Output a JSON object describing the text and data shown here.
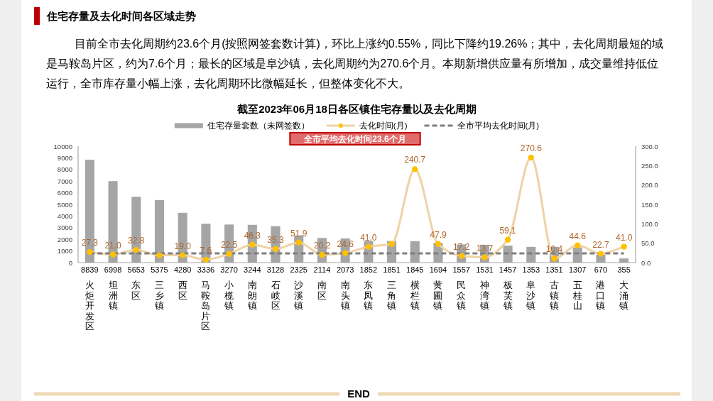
{
  "chart_data": {
    "type": "bar",
    "title": "截至2023年06月18日各区镇住宅存量以及去化周期",
    "categories": [
      "火炬开发区",
      "坦洲镇",
      "东区",
      "三乡镇",
      "西区",
      "马鞍岛片区",
      "小榄镇",
      "南朗镇",
      "石岐区",
      "沙溪镇",
      "南区",
      "南头镇",
      "东凤镇",
      "三角镇",
      "横栏镇",
      "黄圃镇",
      "民众镇",
      "神湾镇",
      "板芙镇",
      "阜沙镇",
      "古镇镇",
      "五桂山",
      "港口镇",
      "大涌镇"
    ],
    "series": [
      {
        "name": "住宅存量套数（未网签数）",
        "color": "#a5a5a5",
        "values": [
          8839,
          6998,
          5653,
          5375,
          4280,
          3336,
          3270,
          3244,
          3128,
          2325,
          2114,
          2073,
          1852,
          1851,
          1845,
          1694,
          1557,
          1531,
          1457,
          1353,
          1351,
          1307,
          670,
          355
        ],
        "value_labels": [
          "8839",
          "6998",
          "5653",
          "5375",
          "4280",
          "3336",
          "3270",
          "3244",
          "3128",
          "2325",
          "2114",
          "2073",
          "1852",
          "1851",
          "1845",
          "1694",
          "1557",
          "1531",
          "1457",
          "1353",
          "1351",
          "1307",
          "670",
          "355"
        ]
      },
      {
        "name": "去化时间(月)",
        "type": "line",
        "axis": "y2",
        "color": "#efd3a6",
        "colors": [
          "#ffc000",
          "#ffc000",
          "#ffc000",
          "#ffc000",
          "#ffc000",
          "#ffc000",
          "#ffc000",
          "#ffc000",
          "#ffc000",
          "#ffc000",
          "#ffc000",
          "#ffc000",
          "#ffc000",
          "#ffc000",
          "#ffc000",
          "#ffc000",
          "#ffc000",
          "#ffc000",
          "#ffc000",
          "#ffc000",
          "#ffc000",
          "#ffc000",
          "#ffc000",
          "#ffc000"
        ],
        "marker": "circle",
        "values": [
          27.3,
          21.0,
          32.8,
          19,
          19.0,
          7.6,
          22.5,
          46.3,
          35.3,
          51.9,
          20.2,
          24.6,
          41.0,
          48,
          240.7,
          47.9,
          17.2,
          13.7,
          59.1,
          270.6,
          10.4,
          44.6,
          22.7,
          41.0
        ],
        "value_labels": [
          "27.3",
          "21.0",
          "32.8",
          null,
          "19.0",
          "7.6",
          "22.5",
          "46.3",
          "35.3",
          "51.9",
          "20.2",
          "24.6",
          "41.0",
          null,
          "240.7",
          "47.9",
          "17.2",
          "13.7",
          "59.1",
          "270.6",
          "10.4",
          "44.6",
          "22.7",
          "41.0"
        ]
      },
      {
        "name": "全市平均去化时间(月)",
        "type": "line",
        "axis": "y2",
        "color": "#7f7f7f",
        "line_style": "dashed",
        "marker": "none",
        "values": [
          23.6,
          23.6,
          23.6,
          23.6,
          23.6,
          23.6,
          23.6,
          23.6,
          23.6,
          23.6,
          23.6,
          23.6,
          23.6,
          23.6,
          23.6,
          23.6,
          23.6,
          23.6,
          23.6,
          23.6,
          23.6,
          23.6,
          23.6,
          23.6
        ]
      }
    ],
    "ylim": [
      0,
      10000
    ],
    "yticks": [
      0,
      1000,
      2000,
      3000,
      4000,
      5000,
      6000,
      7000,
      8000,
      9000,
      10000
    ],
    "y2lim": [
      0,
      300
    ],
    "y2ticks": [
      {
        "value": 0,
        "label": "0.0"
      },
      {
        "value": 50,
        "label": "50.0"
      },
      {
        "value": 100,
        "label": "100.0"
      },
      {
        "value": 150,
        "label": "150.0"
      },
      {
        "value": 200,
        "label": "200.0"
      },
      {
        "value": 250,
        "label": "250.0"
      },
      {
        "value": 300,
        "label": "300.0"
      }
    ],
    "legend": "top",
    "annotations": [
      "住宅存量及去化时间各区域走势",
      "目前全市去化周期约23.6个月(按照网签套数计算)，环比上涨约0.55%，同比下降约19.26%；其中，去化周期最短的域是马鞍岛片区，约为7.6个月；最长的区域是阜沙镇，去化周期约为270.6个月。本期新增供应量有所增加，成交量维持低位运行，全市库存量小幅上涨，去化周期环比微幅延长，但整体变化不大。",
      "全市平均去化时间23.6个月",
      "END"
    ]
  }
}
